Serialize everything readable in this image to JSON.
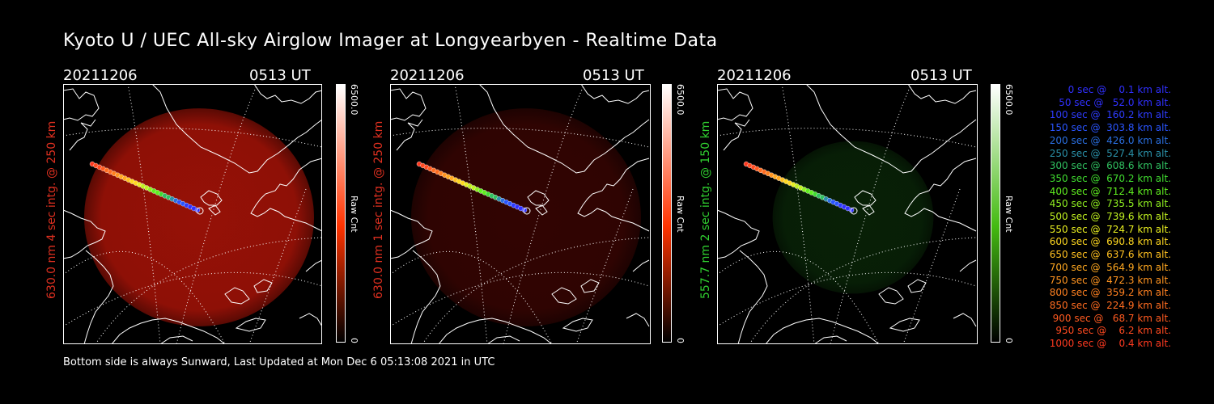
{
  "title": "Kyoto U / UEC All-sky Airglow Imager at Longyearbyen - Realtime Data",
  "footer": "Bottom side is always Sunward, Last Updated at Mon Dec  6 05:13:08 2021 in UTC",
  "panels": [
    {
      "date": "20211206",
      "time": "0513 UT",
      "side_label": "630.0 nm 4 sec intg. @ 250 km",
      "side_color": "#e03020",
      "cb_max": "6500.0",
      "cb_min": "0",
      "cb_unit": "Raw Cnt",
      "cb_color": "#ff3300",
      "glow_color": "#b01408",
      "glow_intensity": 0.85,
      "glow_radius": 1.0
    },
    {
      "date": "20211206",
      "time": "0513 UT",
      "side_label": "630.0 nm 1 sec intg. @ 250 km",
      "side_color": "#e03020",
      "cb_max": "6500.0",
      "cb_min": "0",
      "cb_unit": "Raw Cnt",
      "cb_color": "#ff3300",
      "glow_color": "#5a0804",
      "glow_intensity": 0.55,
      "glow_radius": 1.0
    },
    {
      "date": "20211206",
      "time": "0513 UT",
      "side_label": "557.7 nm 2 sec intg. @ 150 km",
      "side_color": "#30d030",
      "cb_max": "6500.0",
      "cb_min": "0",
      "cb_unit": "Raw Cnt",
      "cb_color": "#44bb11",
      "glow_color": "#0e3a0c",
      "glow_intensity": 0.55,
      "glow_radius": 0.7
    }
  ],
  "legend": [
    {
      "text": "   0 sec @    0.1 km alt.",
      "color": "#3030ff"
    },
    {
      "text": "  50 sec @   52.0 km alt.",
      "color": "#3030ff"
    },
    {
      "text": " 100 sec @  160.2 km alt.",
      "color": "#2e3cff"
    },
    {
      "text": " 150 sec @  303.8 km alt.",
      "color": "#2a55ff"
    },
    {
      "text": " 200 sec @  426.0 km alt.",
      "color": "#2a6fe0"
    },
    {
      "text": " 250 sec @  527.4 km alt.",
      "color": "#2a90a8"
    },
    {
      "text": " 300 sec @  608.6 km alt.",
      "color": "#30c060"
    },
    {
      "text": " 350 sec @  670.2 km alt.",
      "color": "#40dd30"
    },
    {
      "text": " 400 sec @  712.4 km alt.",
      "color": "#60ee20"
    },
    {
      "text": " 450 sec @  735.5 km alt.",
      "color": "#90f020"
    },
    {
      "text": " 500 sec @  739.6 km alt.",
      "color": "#c0f020"
    },
    {
      "text": " 550 sec @  724.7 km alt.",
      "color": "#e8ee20"
    },
    {
      "text": " 600 sec @  690.8 km alt.",
      "color": "#ffd820"
    },
    {
      "text": " 650 sec @  637.6 km alt.",
      "color": "#ffc020"
    },
    {
      "text": " 700 sec @  564.9 km alt.",
      "color": "#ffa820"
    },
    {
      "text": " 750 sec @  472.3 km alt.",
      "color": "#ff9420"
    },
    {
      "text": " 800 sec @  359.2 km alt.",
      "color": "#ff8020"
    },
    {
      "text": " 850 sec @  224.9 km alt.",
      "color": "#ff6c20"
    },
    {
      "text": " 900 sec @   68.7 km alt.",
      "color": "#ff5a20"
    },
    {
      "text": " 950 sec @    6.2 km alt.",
      "color": "#ff4a20"
    },
    {
      "text": "1000 sec @    0.4 km alt.",
      "color": "#ff3a20"
    }
  ]
}
